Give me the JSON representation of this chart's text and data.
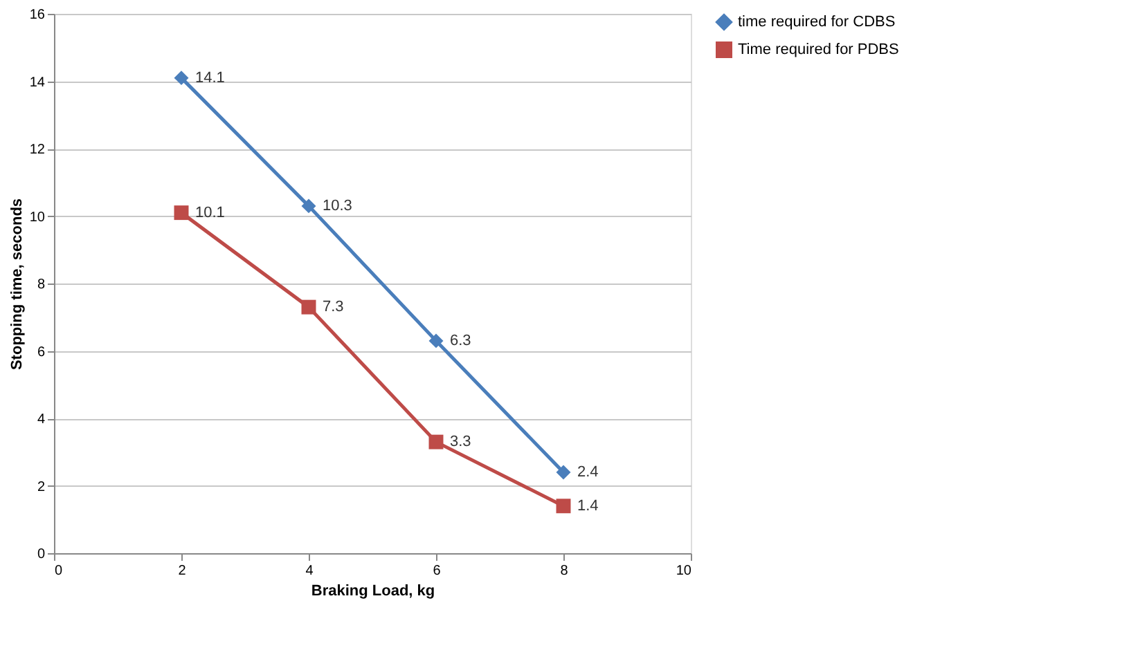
{
  "chart_data": {
    "type": "line",
    "xlabel": "Braking Load, kg",
    "ylabel": "Stopping time, seconds",
    "x": [
      2,
      4,
      6,
      8
    ],
    "series": [
      {
        "name": "time required for CDBS",
        "color": "#4a7ebb",
        "marker": "diamond",
        "values": [
          14.1,
          10.3,
          6.3,
          2.4
        ]
      },
      {
        "name": "Time required for PDBS",
        "color": "#be4b48",
        "marker": "square",
        "values": [
          10.1,
          7.3,
          3.3,
          1.4
        ]
      }
    ],
    "xlim": [
      0,
      10
    ],
    "xticks": [
      0,
      2,
      4,
      6,
      8,
      10
    ],
    "ylim": [
      0,
      16
    ],
    "yticks": [
      0,
      2,
      4,
      6,
      8,
      10,
      12,
      14,
      16
    ],
    "grid": "y",
    "legend": "right",
    "data_labels": true
  }
}
